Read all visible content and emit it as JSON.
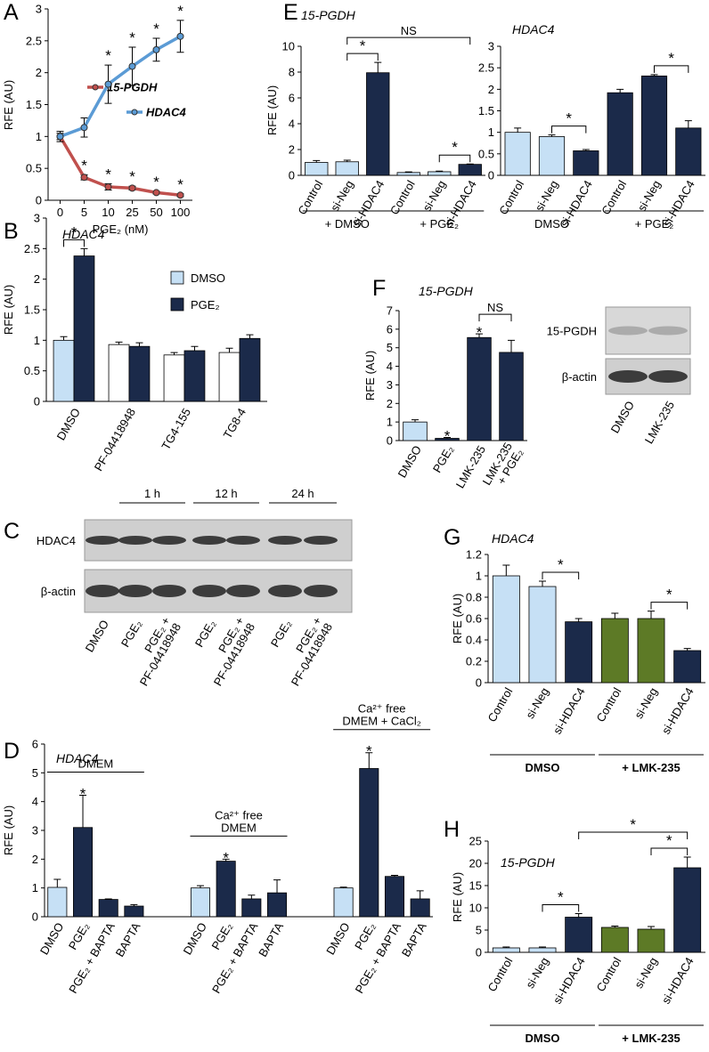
{
  "panels": [
    "A",
    "B",
    "C",
    "D",
    "E",
    "F",
    "G",
    "H"
  ],
  "chart_data": [
    {
      "type": "line",
      "ylabel": "RFE (AU)",
      "xlabel": "PGE₂ (nM)",
      "categories": [
        "0",
        "5",
        "10",
        "25",
        "50",
        "100"
      ],
      "ylim": [
        0,
        3
      ],
      "yticks": [
        0,
        0.5,
        1,
        1.5,
        2,
        2.5,
        3
      ],
      "legend": "center",
      "series": [
        {
          "name": "15-PGDH",
          "color": "#c0504d",
          "values": [
            1,
            0.36,
            0.21,
            0.19,
            0.12,
            0.08
          ],
          "errors": [
            0.05,
            0.04,
            0.05,
            0.03,
            0.02,
            0.02
          ],
          "significance": [
            null,
            "*",
            "*",
            "*",
            "*",
            "*"
          ]
        },
        {
          "name": "HDAC4",
          "color": "#5b9bd5",
          "values": [
            1,
            1.14,
            1.82,
            2.1,
            2.36,
            2.57
          ],
          "errors": [
            0.08,
            0.15,
            0.3,
            0.3,
            0.18,
            0.25
          ],
          "significance": [
            null,
            null,
            "*",
            "*",
            "*",
            "*"
          ]
        }
      ]
    },
    {
      "type": "bar",
      "title": "HDAC4",
      "ylabel": "RFE (AU)",
      "categories": [
        "DMSO",
        "PF-04418948",
        "TG4-155",
        "TG8-4"
      ],
      "ylim": [
        0,
        3
      ],
      "yticks": [
        0,
        0.5,
        1,
        1.5,
        2,
        2.5,
        3
      ],
      "legend": "right",
      "series": [
        {
          "name": "DMSO",
          "color": "#c6e0f5",
          "colors": [
            "#c6e0f5",
            "#ffffff",
            "#ffffff",
            "#ffffff"
          ],
          "values": [
            1,
            0.93,
            0.76,
            0.8
          ],
          "errors": [
            0.06,
            0.04,
            0.04,
            0.07
          ]
        },
        {
          "name": "PGE₂",
          "color": "#1b2a4a",
          "values": [
            2.38,
            0.9,
            0.83,
            1.03
          ],
          "errors": [
            0.12,
            0.06,
            0.07,
            0.06
          ]
        }
      ],
      "comparisons": [
        {
          "label": "*",
          "between": [
            0,
            1
          ]
        }
      ]
    },
    {
      "type": "bar",
      "title": "HDAC4",
      "ylabel": "RFE (AU)",
      "categories": [
        "DMSO",
        "PGE₂",
        "PGE₂ + BAPTA",
        "BAPTA",
        "DMSO",
        "PGE₂",
        "PGE₂ + BAPTA",
        "BAPTA",
        "DMSO",
        "PGE₂",
        "PGE₂ + BAPTA",
        "BAPTA"
      ],
      "values": [
        1.02,
        3.1,
        0.6,
        0.37,
        1,
        1.93,
        0.62,
        0.83,
        1,
        5.15,
        1.4,
        0.62
      ],
      "errors": [
        0.28,
        1.12,
        0.02,
        0.05,
        0.08,
        0.07,
        0.13,
        0.45,
        0.03,
        0.55,
        0.04,
        0.28
      ],
      "colors": [
        "#c6e0f5",
        "#1b2a4a",
        "#1b2a4a",
        "#1b2a4a",
        "#c6e0f5",
        "#1b2a4a",
        "#1b2a4a",
        "#1b2a4a",
        "#c6e0f5",
        "#1b2a4a",
        "#1b2a4a",
        "#1b2a4a"
      ],
      "significance": [
        null,
        "*",
        null,
        null,
        null,
        "*",
        null,
        null,
        null,
        "*",
        null,
        null
      ],
      "ylim": [
        0,
        6
      ],
      "yticks": [
        0,
        1,
        2,
        3,
        4,
        5,
        6
      ],
      "header_groups": [
        {
          "label": [
            "DMEM"
          ],
          "span": [
            0,
            3
          ]
        },
        {
          "label": [
            "Ca²⁺ free",
            "DMEM"
          ],
          "span": [
            4,
            7
          ]
        },
        {
          "label": [
            "Ca²⁺ free",
            "DMEM + CaCl₂"
          ],
          "span": [
            8,
            11
          ]
        }
      ]
    },
    {
      "type": "bar",
      "title": "15-PGDH",
      "ylabel": "RFE (AU)",
      "categories": [
        "Control",
        "si-Neg",
        "si-HDAC4",
        "Control",
        "si-Neg",
        "si-HDAC4"
      ],
      "values": [
        1,
        1.05,
        7.95,
        0.22,
        0.28,
        0.85
      ],
      "errors": [
        0.15,
        0.12,
        0.8,
        0.05,
        0.05,
        0.03
      ],
      "colors": [
        "#c6e0f5",
        "#c6e0f5",
        "#1b2a4a",
        "#c6e0f5",
        "#c6e0f5",
        "#1b2a4a"
      ],
      "ylim": [
        0,
        10
      ],
      "yticks": [
        0,
        2,
        4,
        6,
        8,
        10
      ],
      "comparisons": [
        {
          "label": "*",
          "between": [
            4,
            5
          ]
        },
        {
          "label": "*",
          "between": [
            1,
            2
          ]
        },
        {
          "label": "NS",
          "between": [
            1,
            5
          ]
        }
      ],
      "groups": [
        {
          "label": "+ DMSO",
          "span": [
            0,
            2
          ]
        },
        {
          "label": "+ PGE₂",
          "span": [
            3,
            5
          ]
        }
      ]
    },
    {
      "type": "bar",
      "title": "HDAC4",
      "categories": [
        "Control",
        "si-Neg",
        "si-HDAC4",
        "Control",
        "si-Neg",
        "si-HDAC4"
      ],
      "values": [
        1,
        0.9,
        0.57,
        1.92,
        2.31,
        1.1
      ],
      "errors": [
        0.1,
        0.04,
        0.03,
        0.08,
        0.03,
        0.17
      ],
      "colors": [
        "#c6e0f5",
        "#c6e0f5",
        "#1b2a4a",
        "#1b2a4a",
        "#1b2a4a",
        "#1b2a4a"
      ],
      "ylim": [
        0,
        3
      ],
      "yticks": [
        0,
        0.5,
        1,
        1.5,
        2,
        2.5,
        3
      ],
      "comparisons": [
        {
          "label": "*",
          "between": [
            1,
            2
          ]
        },
        {
          "label": "*",
          "between": [
            4,
            5
          ]
        }
      ],
      "groups": [
        {
          "label": "DMSO",
          "span": [
            0,
            2
          ]
        },
        {
          "label": "+ PGE₂",
          "span": [
            3,
            5
          ]
        }
      ]
    },
    {
      "type": "bar",
      "title": "15-PGDH",
      "ylabel": "RFE (AU)",
      "categories": [
        "DMSO",
        "PGE₂",
        "LMK-235",
        [
          "LMK-235",
          "+ PGE₂"
        ]
      ],
      "values": [
        1,
        0.12,
        5.55,
        4.75
      ],
      "errors": [
        0.12,
        0.05,
        0.2,
        0.65
      ],
      "colors": [
        "#c6e0f5",
        "#1b2a4a",
        "#1b2a4a",
        "#1b2a4a"
      ],
      "significance": [
        null,
        "*",
        "*",
        null
      ],
      "ylim": [
        0,
        7
      ],
      "yticks": [
        0,
        1,
        2,
        3,
        4,
        5,
        6,
        7
      ],
      "comparisons": [
        {
          "label": "NS",
          "between": [
            2,
            3
          ]
        }
      ]
    },
    {
      "type": "bar",
      "title": "HDAC4",
      "ylabel": "RFE (AU)",
      "categories": [
        "Control",
        "si-Neg",
        "si-HDAC4",
        "Control",
        "si-Neg",
        "si-HDAC4"
      ],
      "values": [
        1,
        0.9,
        0.57,
        0.6,
        0.6,
        0.3
      ],
      "errors": [
        0.1,
        0.05,
        0.03,
        0.05,
        0.07,
        0.02
      ],
      "colors": [
        "#c6e0f5",
        "#c6e0f5",
        "#1b2a4a",
        "#5d7a26",
        "#5d7a26",
        "#1b2a4a"
      ],
      "ylim": [
        0,
        1.2
      ],
      "yticks": [
        0,
        0.2,
        0.4,
        0.6,
        0.8,
        1,
        1.2
      ],
      "comparisons": [
        {
          "label": "*",
          "between": [
            1,
            2
          ]
        },
        {
          "label": "*",
          "between": [
            4,
            5
          ]
        }
      ],
      "groups": [
        {
          "label": "DMSO",
          "span": [
            0,
            2
          ]
        },
        {
          "label": "+ LMK-235",
          "span": [
            3,
            5
          ]
        }
      ],
      "group_style": "bold"
    },
    {
      "type": "bar",
      "title": "15-PGDH",
      "ylabel": "RFE (AU)",
      "categories": [
        "Control",
        "si-Neg",
        "si-HDAC4",
        "Control",
        "si-Neg",
        "si-HDAC4"
      ],
      "values": [
        1,
        1,
        7.9,
        5.6,
        5.2,
        19
      ],
      "errors": [
        0.2,
        0.2,
        0.8,
        0.3,
        0.6,
        2.4
      ],
      "colors": [
        "#c6e0f5",
        "#c6e0f5",
        "#1b2a4a",
        "#5d7a26",
        "#5d7a26",
        "#1b2a4a"
      ],
      "ylim": [
        0,
        25
      ],
      "yticks": [
        0,
        5,
        10,
        15,
        20,
        25
      ],
      "comparisons": [
        {
          "label": "*",
          "between": [
            1,
            2
          ]
        },
        {
          "label": "*",
          "between": [
            4,
            5
          ]
        },
        {
          "label": "*",
          "between": [
            2,
            5
          ]
        }
      ],
      "groups": [
        {
          "label": "DMSO",
          "span": [
            0,
            2
          ]
        },
        {
          "label": "+ LMK-235",
          "span": [
            3,
            5
          ]
        }
      ],
      "group_style": "bold"
    }
  ],
  "blots": [
    {
      "rows": [
        "HDAC4",
        "β-actin"
      ],
      "lanes": [
        [
          "DMSO"
        ],
        [
          "PGE₂"
        ],
        [
          "PGE₂ +",
          "PF-04418948"
        ],
        [
          "PGE₂"
        ],
        [
          "PGE₂ +",
          "PF-04418948"
        ],
        [
          "PGE₂"
        ],
        [
          "PGE₂ +",
          "PF-04418948"
        ]
      ],
      "time_points": [
        {
          "label": "1 h",
          "span": [
            1,
            2
          ]
        },
        {
          "label": "12 h",
          "span": [
            3,
            4
          ]
        },
        {
          "label": "24 h",
          "span": [
            5,
            6
          ]
        }
      ]
    },
    {
      "rows": [
        "15-PGDH",
        "β-actin"
      ],
      "lanes": [
        [
          "DMSO"
        ],
        [
          "LMK-235"
        ]
      ]
    }
  ]
}
